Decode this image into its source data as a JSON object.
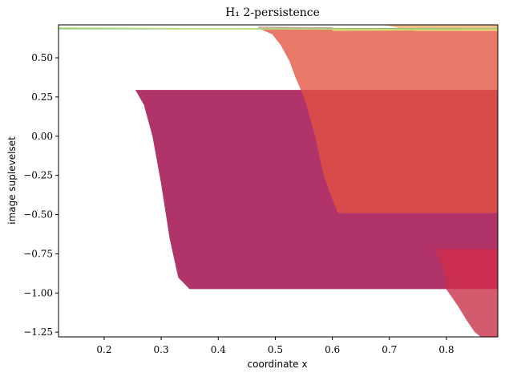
{
  "chart_data": {
    "type": "area",
    "title": "H₁ 2-persistence",
    "xlabel": "coordinate x",
    "ylabel": "image suplevelset",
    "xlim": [
      0.12,
      0.89
    ],
    "ylim": [
      -1.28,
      0.71
    ],
    "x_ticks": [
      0.2,
      0.3,
      0.4,
      0.5,
      0.6,
      0.7,
      0.8
    ],
    "y_ticks": [
      0.5,
      0.25,
      0.0,
      -0.25,
      -0.5,
      -0.75,
      -1.0,
      -1.25
    ],
    "x_tick_labels": [
      "0.2",
      "0.3",
      "0.4",
      "0.5",
      "0.6",
      "0.7",
      "0.8"
    ],
    "y_tick_labels": [
      "0.50",
      "0.25",
      "0.00",
      "−0.25",
      "−0.50",
      "−0.75",
      "−1.00",
      "−1.25"
    ],
    "grid": false,
    "series": [
      {
        "color": "#b0336a",
        "y_top": 0.295,
        "y_bottom": -0.975,
        "left_boundary": [
          [
            0.255,
            0.295
          ],
          [
            0.27,
            0.2
          ],
          [
            0.285,
            0.0
          ],
          [
            0.3,
            -0.3
          ],
          [
            0.315,
            -0.65
          ],
          [
            0.33,
            -0.9
          ],
          [
            0.35,
            -0.975
          ]
        ],
        "x_right": 0.89
      },
      {
        "color": "#d94b4b",
        "y_top": 0.295,
        "y_bottom": -0.49,
        "left_boundary": [
          [
            0.545,
            0.295
          ],
          [
            0.555,
            0.2
          ],
          [
            0.57,
            0.0
          ],
          [
            0.585,
            -0.25
          ],
          [
            0.6,
            -0.4
          ],
          [
            0.61,
            -0.49
          ]
        ],
        "x_right": 0.89
      },
      {
        "color": "#e87868",
        "y_top": 0.69,
        "y_bottom": 0.295,
        "left_boundary": [
          [
            0.47,
            0.69
          ],
          [
            0.495,
            0.65
          ],
          [
            0.51,
            0.58
          ],
          [
            0.525,
            0.48
          ],
          [
            0.535,
            0.38
          ],
          [
            0.545,
            0.295
          ]
        ],
        "x_right": 0.89
      },
      {
        "color": "#c92d50",
        "y_top": -0.72,
        "y_bottom": -0.975,
        "left_boundary": [
          [
            0.78,
            -0.72
          ],
          [
            0.79,
            -0.8
          ],
          [
            0.8,
            -0.9
          ],
          [
            0.8,
            -0.975
          ]
        ],
        "x_right": 0.89
      },
      {
        "color": "#d45a6e",
        "y_top": -0.975,
        "y_bottom": -1.28,
        "left_boundary": [
          [
            0.8,
            -0.975
          ],
          [
            0.82,
            -1.08
          ],
          [
            0.835,
            -1.17
          ],
          [
            0.85,
            -1.25
          ],
          [
            0.86,
            -1.28
          ]
        ],
        "x_right": 0.89
      },
      {
        "color": "#f6c184",
        "y_top": 0.71,
        "y_bottom": 0.67,
        "left_boundary": [
          [
            0.69,
            0.71
          ],
          [
            0.75,
            0.67
          ]
        ],
        "x_right": 0.89
      }
    ],
    "top_lines": [
      {
        "color": "#7dc67a",
        "x": [
          0.12,
          0.89
        ],
        "y": [
          0.685,
          0.685
        ]
      },
      {
        "color": "#b8dc78",
        "x": [
          0.12,
          0.74
        ],
        "y": [
          0.69,
          0.68
        ]
      },
      {
        "color": "#e0d870",
        "x": [
          0.6,
          0.89
        ],
        "y": [
          0.675,
          0.68
        ]
      },
      {
        "color": "#b9a79a",
        "x": [
          0.47,
          0.6
        ],
        "y": [
          0.695,
          0.69
        ]
      }
    ]
  }
}
